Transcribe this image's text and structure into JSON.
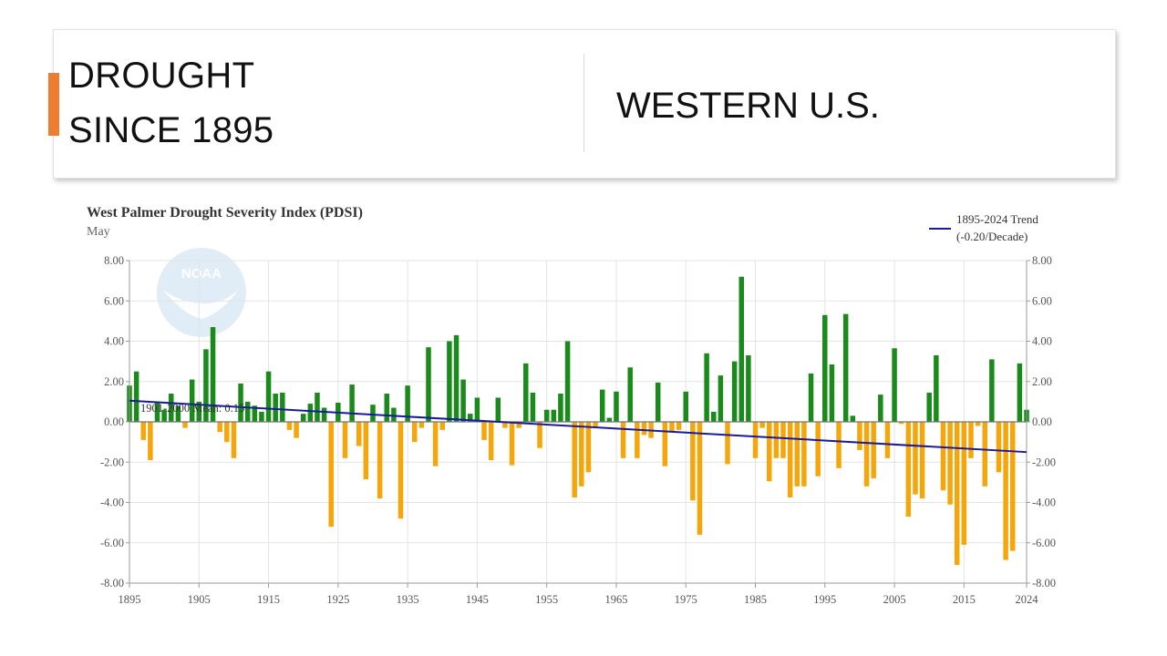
{
  "slide": {
    "title_line_1": "DROUGHT",
    "title_line_2": "SINCE 1895",
    "region": "WESTERN U.S.",
    "accent_color": "#ed7d31"
  },
  "chart_data": {
    "type": "bar",
    "title": "West Palmer Drought Severity Index (PDSI)",
    "subtitle": "May",
    "watermark": "NOAA",
    "x_start": 1895,
    "x_end": 2024,
    "x_ticks": [
      1895,
      1905,
      1915,
      1925,
      1935,
      1945,
      1955,
      1965,
      1975,
      1985,
      1995,
      2005,
      2015,
      2024
    ],
    "ylim": [
      -8,
      8
    ],
    "y_ticks": [
      -8,
      -6,
      -4,
      -2,
      0,
      2,
      4,
      6,
      8
    ],
    "y_tick_labels": [
      "-8.00",
      "-6.00",
      "-4.00",
      "-2.00",
      "0.00",
      "2.00",
      "4.00",
      "6.00",
      "8.00"
    ],
    "grid": true,
    "legend_position": "top-right",
    "positive_color": "#1a8a1a",
    "negative_color": "#f5a60a",
    "mean_label": "1901-2000 Mean: 0.15",
    "mean_value": 0.15,
    "trend": {
      "legend_line_1": "1895-2024 Trend",
      "legend_line_2": "(-0.20/Decade)",
      "start_year": 1895,
      "start_value": 1.05,
      "end_year": 2024,
      "end_value": -1.5,
      "color": "#1a1aa0"
    },
    "years": [
      1895,
      1896,
      1897,
      1898,
      1899,
      1900,
      1901,
      1902,
      1903,
      1904,
      1905,
      1906,
      1907,
      1908,
      1909,
      1910,
      1911,
      1912,
      1913,
      1914,
      1915,
      1916,
      1917,
      1918,
      1919,
      1920,
      1921,
      1922,
      1923,
      1924,
      1925,
      1926,
      1927,
      1928,
      1929,
      1930,
      1931,
      1932,
      1933,
      1934,
      1935,
      1936,
      1937,
      1938,
      1939,
      1940,
      1941,
      1942,
      1943,
      1944,
      1945,
      1946,
      1947,
      1948,
      1949,
      1950,
      1951,
      1952,
      1953,
      1954,
      1955,
      1956,
      1957,
      1958,
      1959,
      1960,
      1961,
      1962,
      1963,
      1964,
      1965,
      1966,
      1967,
      1968,
      1969,
      1970,
      1971,
      1972,
      1973,
      1974,
      1975,
      1976,
      1977,
      1978,
      1979,
      1980,
      1981,
      1982,
      1983,
      1984,
      1985,
      1986,
      1987,
      1988,
      1989,
      1990,
      1991,
      1992,
      1993,
      1994,
      1995,
      1996,
      1997,
      1998,
      1999,
      2000,
      2001,
      2002,
      2003,
      2004,
      2005,
      2006,
      2007,
      2008,
      2009,
      2010,
      2011,
      2012,
      2013,
      2014,
      2015,
      2016,
      2017,
      2018,
      2019,
      2020,
      2021,
      2022,
      2023,
      2024
    ],
    "values": [
      1.8,
      2.5,
      -0.9,
      -1.9,
      1.0,
      0.6,
      1.4,
      0.8,
      -0.3,
      2.1,
      1.0,
      3.6,
      4.7,
      -0.5,
      -1.0,
      -1.8,
      1.9,
      1.0,
      0.8,
      0.5,
      2.5,
      1.4,
      1.45,
      -0.4,
      -0.8,
      0.4,
      0.9,
      1.45,
      0.7,
      -5.2,
      0.95,
      -1.8,
      1.85,
      -1.2,
      -2.85,
      0.85,
      -3.8,
      1.4,
      0.7,
      -4.8,
      1.8,
      -1.0,
      -0.3,
      3.7,
      -2.2,
      -0.4,
      4.0,
      4.3,
      2.1,
      0.4,
      1.2,
      -0.9,
      -1.9,
      1.2,
      -0.3,
      -2.15,
      -0.3,
      2.9,
      1.45,
      -1.3,
      0.6,
      0.6,
      1.4,
      4.0,
      -3.75,
      -3.2,
      -2.5,
      -0.3,
      1.6,
      0.2,
      1.5,
      -1.8,
      2.7,
      -1.8,
      -0.65,
      -0.8,
      1.95,
      -2.2,
      -0.5,
      -0.4,
      1.5,
      -3.9,
      -5.6,
      3.4,
      0.5,
      2.3,
      -2.1,
      3.0,
      7.2,
      3.3,
      -1.8,
      -0.3,
      -2.95,
      -1.8,
      -1.8,
      -3.75,
      -3.2,
      -3.2,
      2.4,
      -2.7,
      5.3,
      2.85,
      -2.3,
      5.35,
      0.3,
      -1.4,
      -3.2,
      -2.8,
      1.35,
      -1.8,
      3.65,
      -0.1,
      -4.7,
      -3.6,
      -3.8,
      1.45,
      3.3,
      -3.4,
      -4.1,
      -7.1,
      -6.1,
      -1.8,
      -0.2,
      -3.2,
      3.1,
      -2.5,
      -6.85,
      -6.4,
      2.9,
      0.6
    ]
  }
}
